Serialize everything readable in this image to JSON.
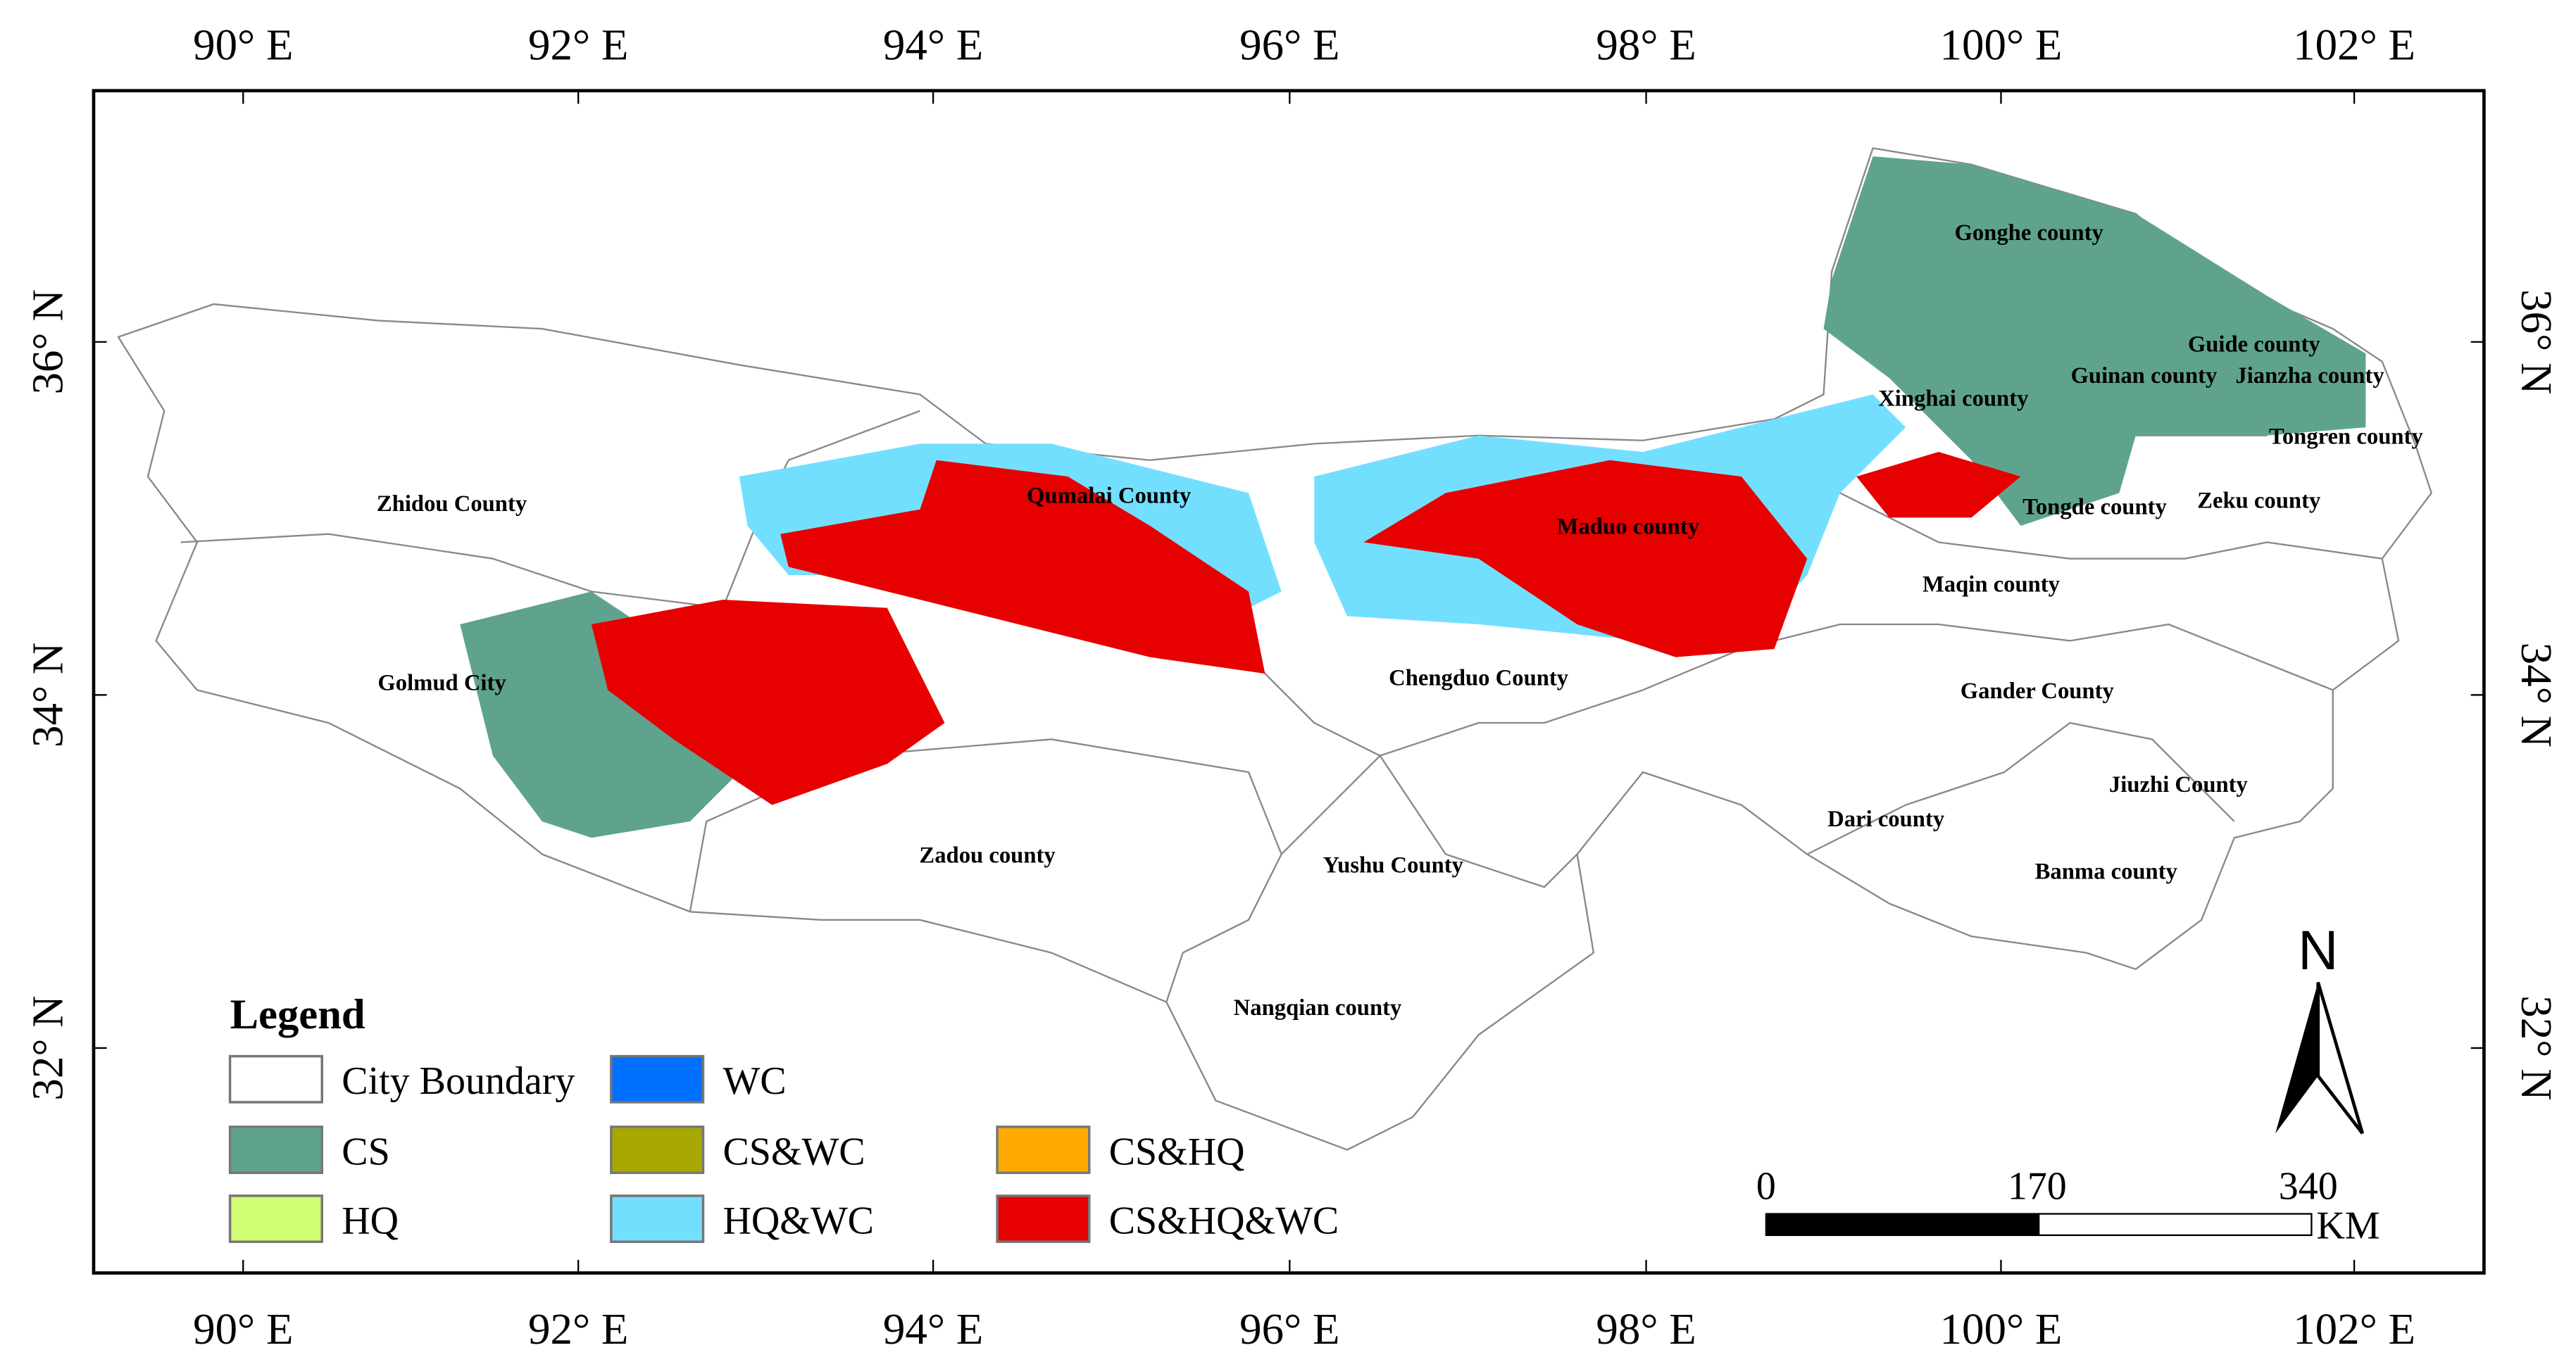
{
  "map": {
    "lon_labels_top": [
      "90° E",
      "92° E",
      "94° E",
      "96° E",
      "98° E",
      "100° E",
      "102° E"
    ],
    "lon_labels_bottom": [
      "90° E",
      "92° E",
      "94° E",
      "96° E",
      "98° E",
      "100° E",
      "102° E"
    ],
    "lat_labels_left": [
      "36° N",
      "34° N",
      "32° N"
    ],
    "lat_labels_right": [
      "36° N",
      "34° N",
      "32° N"
    ],
    "counties": [
      "Gonghe county",
      "Guide county",
      "Guinan county",
      "Jianzha county",
      "Tongren county",
      "Xinghai county",
      "Tongde county",
      "Zeku county",
      "Maqin county",
      "Maduo county",
      "Qumalai County",
      "Zhidou County",
      "Golmud City",
      "Chengduo County",
      "Gander County",
      "Jiuzhi County",
      "Dari county",
      "Banma county",
      "Zadou county",
      "Yushu County",
      "Nangqian county"
    ],
    "legend": {
      "title": "Legend",
      "items": [
        {
          "name": "City Boundary",
          "color": "#ffffff"
        },
        {
          "name": "CS",
          "color": "#5fa38e"
        },
        {
          "name": "HQ",
          "color": "#d1ff73"
        },
        {
          "name": "WC",
          "color": "#0070ff"
        },
        {
          "name": "CS&WC",
          "color": "#a8a800"
        },
        {
          "name": "HQ&WC",
          "color": "#73dfff"
        },
        {
          "name": "CS&HQ",
          "color": "#ffaa00"
        },
        {
          "name": "CS&HQ&WC",
          "color": "#e60000"
        }
      ]
    },
    "scale_bar": {
      "labels": [
        "0",
        "170",
        "340"
      ],
      "unit": "KM"
    },
    "north": "N"
  }
}
